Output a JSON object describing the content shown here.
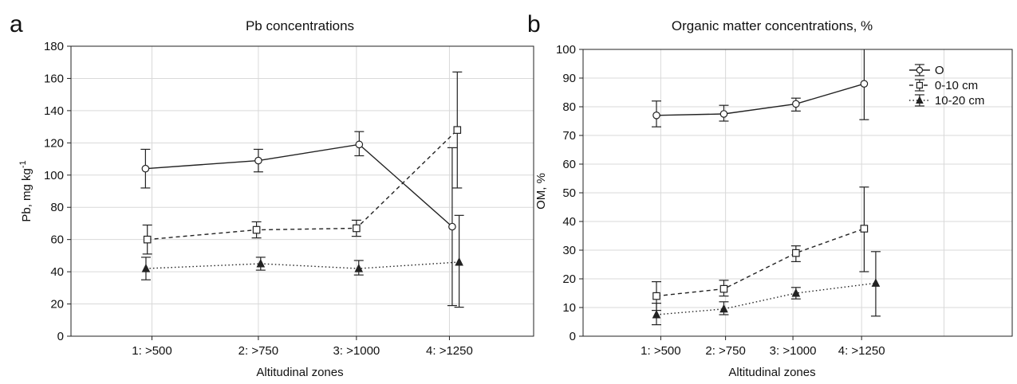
{
  "chart_data": [
    {
      "panel": "a",
      "type": "line",
      "title": "Pb concentrations",
      "xlabel": "Altitudinal zones",
      "ylabel": "Pb, mg kg",
      "ylabel_sup": "-1",
      "categories": [
        "1: >500",
        "2: >750",
        "3: >1000",
        "4: >1250"
      ],
      "ylim": [
        0,
        180
      ],
      "yticks": [
        0,
        20,
        40,
        60,
        80,
        100,
        120,
        140,
        160,
        180
      ],
      "grid": true,
      "legend": false,
      "series": [
        {
          "name": "O",
          "marker": "circle",
          "dash": "solid",
          "values": [
            104,
            109,
            119,
            68
          ],
          "err_low": [
            92,
            102,
            112,
            19
          ],
          "err_high": [
            116,
            116,
            127,
            117
          ]
        },
        {
          "name": "0-10 cm",
          "marker": "square",
          "dash": "dashed",
          "values": [
            60,
            66,
            67,
            128
          ],
          "err_low": [
            51,
            61,
            62,
            92
          ],
          "err_high": [
            69,
            71,
            72,
            164
          ]
        },
        {
          "name": "10-20 cm",
          "marker": "triangle",
          "dash": "dotted",
          "values": [
            42,
            45,
            42,
            46
          ],
          "err_low": [
            35,
            41,
            38,
            18
          ],
          "err_high": [
            49,
            49,
            47,
            75
          ]
        }
      ]
    },
    {
      "panel": "b",
      "type": "line",
      "title": "Organic matter concentrations, %",
      "xlabel": "Altitudinal zones",
      "ylabel": "OM, %",
      "categories": [
        "1: >500",
        "2: >750",
        "3: >1000",
        "4: >1250"
      ],
      "ylim": [
        0,
        100
      ],
      "yticks": [
        0,
        10,
        20,
        30,
        40,
        50,
        60,
        70,
        80,
        90,
        100
      ],
      "grid": true,
      "legend": "top-right",
      "series": [
        {
          "name": "O",
          "marker": "circle",
          "dash": "solid",
          "values": [
            77,
            77.5,
            81,
            88
          ],
          "err_low": [
            73,
            75,
            78.5,
            75.5
          ],
          "err_high": [
            82,
            80.5,
            83,
            100
          ]
        },
        {
          "name": "0-10 cm",
          "marker": "square",
          "dash": "dashed",
          "values": [
            14,
            16.5,
            29,
            37.5
          ],
          "err_low": [
            9,
            14,
            26,
            22.5
          ],
          "err_high": [
            19,
            19.5,
            31.5,
            52
          ]
        },
        {
          "name": "10-20 cm",
          "marker": "triangle",
          "dash": "dotted",
          "values": [
            7.5,
            9.5,
            15,
            18.5
          ],
          "err_low": [
            4,
            7.5,
            13,
            7
          ],
          "err_high": [
            11.5,
            12,
            17,
            29.5
          ]
        }
      ]
    }
  ]
}
